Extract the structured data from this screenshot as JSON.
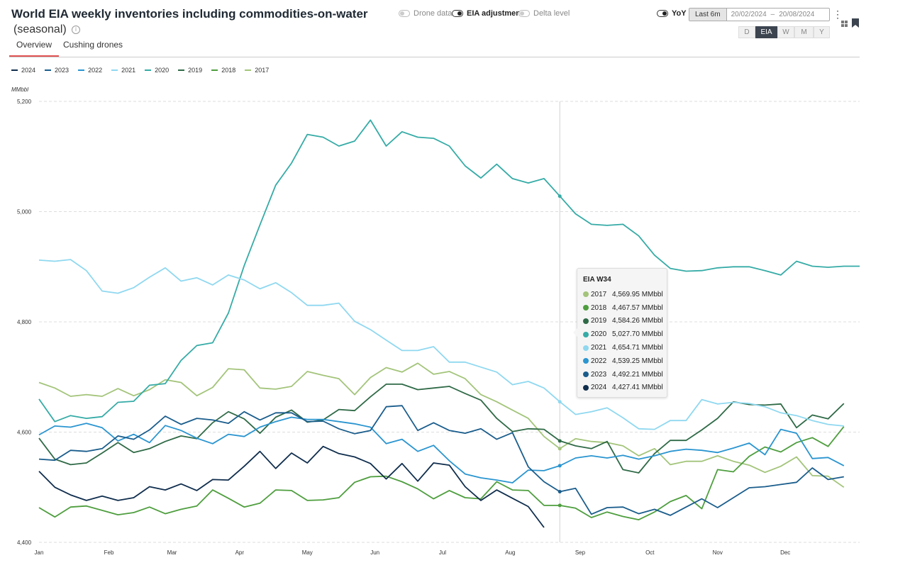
{
  "header": {
    "title": "World EIA weekly inventories including commodities-on-water",
    "subtitle": "(seasonal)",
    "info_icon": "info-icon"
  },
  "tabs": [
    {
      "label": "Overview",
      "active": true
    },
    {
      "label": "Cushing drones",
      "active": false
    }
  ],
  "toggles": {
    "drone": {
      "label": "Drone data",
      "on": false
    },
    "eia": {
      "label": "EIA adjustment",
      "on": true
    },
    "delta": {
      "label": "Delta level",
      "on": false
    },
    "yoy": {
      "label": "YoY",
      "on": true
    }
  },
  "range": {
    "button": "Last 6m",
    "from": "20/02/2024",
    "separator": "–",
    "to": "20/08/2024"
  },
  "periods": [
    {
      "label": "D",
      "active": false
    },
    {
      "label": "EIA",
      "active": true
    },
    {
      "label": "W",
      "active": false
    },
    {
      "label": "M",
      "active": false
    },
    {
      "label": "Y",
      "active": false
    }
  ],
  "icons": {
    "menu": "kebab-menu-icon",
    "layout": "grid-icon",
    "bookmark": "bookmark-icon"
  },
  "unit_label": "MMbbl",
  "tooltip": {
    "title": "EIA W34",
    "rows": [
      {
        "year": "2017",
        "value": "4,569.95 MMbbl",
        "color": "#a3c47a"
      },
      {
        "year": "2018",
        "value": "4,467.57 MMbbl",
        "color": "#4e9e3e"
      },
      {
        "year": "2019",
        "value": "4,584.26 MMbbl",
        "color": "#2f6a47"
      },
      {
        "year": "2020",
        "value": "5,027.70 MMbbl",
        "color": "#35aba6"
      },
      {
        "year": "2021",
        "value": "4,654.71 MMbbl",
        "color": "#8fd8f0"
      },
      {
        "year": "2022",
        "value": "4,539.25 MMbbl",
        "color": "#2a95d0"
      },
      {
        "year": "2023",
        "value": "4,492.21 MMbbl",
        "color": "#1a5d8c"
      },
      {
        "year": "2024",
        "value": "4,427.41 MMbbl",
        "color": "#0f2d4d"
      }
    ]
  },
  "chart_data": {
    "type": "line",
    "title": "World EIA weekly inventories including commodities-on-water",
    "ylabel": "MMbbl",
    "ylim": [
      4400,
      5200
    ],
    "yticks": [
      4400,
      4600,
      4800,
      5000,
      5200
    ],
    "ytick_labels": [
      "4,400",
      "4,600",
      "4,800",
      "5,000",
      "5,200"
    ],
    "xlim": [
      1,
      53
    ],
    "x_unit": "week",
    "xticks": [
      1,
      5.43,
      9.43,
      13.71,
      18,
      22.29,
      26.57,
      30.86,
      35.29,
      39.71,
      44,
      48.29
    ],
    "xtick_labels": [
      "Jan",
      "Feb",
      "Mar",
      "Apr",
      "May",
      "Jun",
      "Jul",
      "Aug",
      "Sep",
      "Oct",
      "Nov",
      "Dec"
    ],
    "crosshair_week": 34,
    "grid": "horizontal dashed",
    "legend": "top-left",
    "series": [
      {
        "name": "2024",
        "color": "#0f2d4d",
        "values": [
          4529,
          4500,
          4486,
          4476,
          4484,
          4476,
          4481,
          4501,
          4495,
          4506,
          4494,
          4514,
          4513,
          4538,
          4565,
          4534,
          4562,
          4544,
          4574,
          4561,
          4555,
          4543,
          4515,
          4543,
          4511,
          4544,
          4540,
          4501,
          4476,
          4495,
          4480,
          4465,
          4427
        ]
      },
      {
        "name": "2023",
        "color": "#1a5d8c",
        "values": [
          4551,
          4549,
          4567,
          4565,
          4570,
          4593,
          4587,
          4604,
          4629,
          4614,
          4625,
          4622,
          4616,
          4637,
          4622,
          4635,
          4635,
          4619,
          4620,
          4606,
          4597,
          4603,
          4646,
          4648,
          4603,
          4617,
          4603,
          4598,
          4606,
          4587,
          4599,
          4537,
          4510,
          4492,
          4498,
          4451,
          4463,
          4464,
          4452,
          4460,
          4449,
          4464,
          4479,
          4463,
          4481,
          4499,
          4501,
          4505,
          4509,
          4535,
          4514,
          4519
        ]
      },
      {
        "name": "2022",
        "color": "#2a95d0",
        "values": [
          4595,
          4611,
          4609,
          4616,
          4608,
          4584,
          4596,
          4581,
          4612,
          4603,
          4589,
          4579,
          4596,
          4592,
          4609,
          4619,
          4627,
          4623,
          4623,
          4619,
          4615,
          4609,
          4579,
          4587,
          4565,
          4576,
          4548,
          4524,
          4517,
          4513,
          4508,
          4531,
          4530,
          4539,
          4553,
          4557,
          4553,
          4558,
          4551,
          4557,
          4565,
          4569,
          4567,
          4563,
          4571,
          4580,
          4559,
          4605,
          4598,
          4552,
          4554,
          4539
        ]
      },
      {
        "name": "2021",
        "color": "#8fd8f0",
        "values": [
          4912,
          4910,
          4913,
          4893,
          4856,
          4852,
          4862,
          4881,
          4898,
          4874,
          4880,
          4867,
          4885,
          4876,
          4860,
          4871,
          4853,
          4830,
          4830,
          4834,
          4801,
          4786,
          4767,
          4748,
          4748,
          4755,
          4727,
          4727,
          4718,
          4709,
          4686,
          4692,
          4680,
          4655,
          4632,
          4637,
          4644,
          4626,
          4606,
          4605,
          4621,
          4621,
          4659,
          4651,
          4654,
          4652,
          4646,
          4635,
          4630,
          4621,
          4614,
          4611
        ]
      },
      {
        "name": "2020",
        "color": "#35aba6",
        "values": [
          4660,
          4619,
          4630,
          4625,
          4628,
          4654,
          4656,
          4685,
          4688,
          4730,
          4757,
          4762,
          4816,
          4902,
          4976,
          5048,
          5088,
          5140,
          5135,
          5119,
          5128,
          5166,
          5119,
          5145,
          5135,
          5133,
          5119,
          5083,
          5061,
          5086,
          5060,
          5052,
          5060,
          5028,
          4996,
          4977,
          4975,
          4977,
          4956,
          4921,
          4897,
          4892,
          4893,
          4898,
          4900,
          4900,
          4893,
          4885,
          4910,
          4901,
          4899,
          4901,
          4901
        ]
      },
      {
        "name": "2019",
        "color": "#2f6a47",
        "values": [
          4589,
          4551,
          4541,
          4544,
          4562,
          4581,
          4563,
          4570,
          4583,
          4593,
          4588,
          4617,
          4637,
          4624,
          4598,
          4627,
          4640,
          4618,
          4622,
          4641,
          4639,
          4664,
          4687,
          4687,
          4677,
          4680,
          4683,
          4670,
          4658,
          4625,
          4601,
          4606,
          4605,
          4584,
          4575,
          4570,
          4583,
          4532,
          4526,
          4561,
          4585,
          4585,
          4604,
          4625,
          4655,
          4650,
          4649,
          4651,
          4608,
          4631,
          4624,
          4652
        ]
      },
      {
        "name": "2018",
        "color": "#4e9e3e",
        "values": [
          4463,
          4446,
          4464,
          4466,
          4458,
          4450,
          4454,
          4464,
          4452,
          4460,
          4466,
          4495,
          4480,
          4464,
          4471,
          4495,
          4494,
          4476,
          4477,
          4481,
          4509,
          4519,
          4520,
          4510,
          4497,
          4479,
          4494,
          4481,
          4479,
          4510,
          4495,
          4494,
          4467,
          4467,
          4462,
          4445,
          4455,
          4447,
          4441,
          4455,
          4474,
          4485,
          4461,
          4532,
          4528,
          4556,
          4573,
          4564,
          4581,
          4590,
          4574,
          4610
        ]
      },
      {
        "name": "2017",
        "color": "#a3c47a",
        "values": [
          4690,
          4680,
          4665,
          4668,
          4665,
          4679,
          4666,
          4677,
          4695,
          4690,
          4666,
          4681,
          4715,
          4713,
          4680,
          4678,
          4683,
          4710,
          4703,
          4697,
          4668,
          4699,
          4717,
          4709,
          4725,
          4705,
          4710,
          4697,
          4668,
          4655,
          4640,
          4625,
          4592,
          4570,
          4588,
          4583,
          4581,
          4575,
          4557,
          4570,
          4541,
          4547,
          4547,
          4557,
          4547,
          4540,
          4527,
          4538,
          4555,
          4521,
          4520,
          4500
        ]
      }
    ]
  }
}
